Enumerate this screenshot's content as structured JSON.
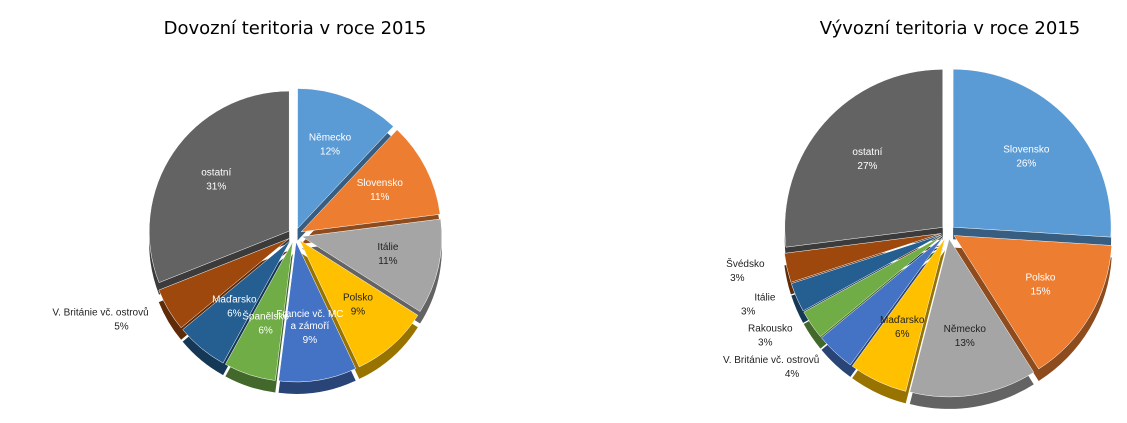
{
  "chart_data": [
    {
      "type": "pie",
      "title": "Dovozní teritoria v roce 2015",
      "categories": [
        "Německo",
        "Slovensko",
        "Itálie",
        "Polsko",
        "Francie vč. MC a zámoří",
        "Španělsko",
        "Maďarsko",
        "V. Británie vč. ostrovů",
        "ostatní"
      ],
      "values": [
        12,
        11,
        11,
        9,
        9,
        6,
        6,
        5,
        31
      ],
      "value_labels": [
        "12%",
        "11%",
        "11%",
        "9%",
        "9%",
        "6%",
        "6%",
        "5%",
        "31%"
      ],
      "colors": [
        "#5b9bd5",
        "#ed7d31",
        "#a5a5a5",
        "#ffc000",
        "#4472c4",
        "#70ad47",
        "#255e91",
        "#9e480e",
        "#636363"
      ]
    },
    {
      "type": "pie",
      "title": "Vývozní teritoria v roce 2015",
      "categories": [
        "Slovensko",
        "Polsko",
        "Německo",
        "Maďarsko",
        "V. Británie vč. ostrovů",
        "Rakousko",
        "Itálie",
        "Švédsko",
        "ostatní"
      ],
      "values": [
        26,
        15,
        13,
        6,
        4,
        3,
        3,
        3,
        27
      ],
      "value_labels": [
        "26%",
        "15%",
        "13%",
        "6%",
        "4%",
        "3%",
        "3%",
        "3%",
        "27%"
      ],
      "colors": [
        "#5b9bd5",
        "#ed7d31",
        "#a5a5a5",
        "#ffc000",
        "#4472c4",
        "#70ad47",
        "#255e91",
        "#9e480e",
        "#636363"
      ]
    }
  ]
}
